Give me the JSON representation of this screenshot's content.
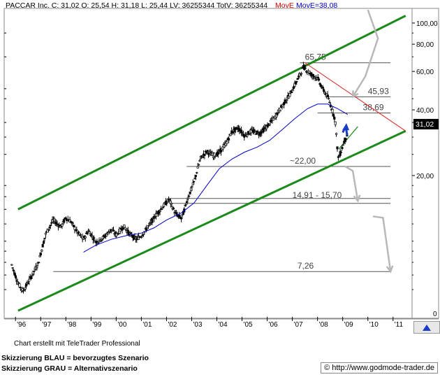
{
  "header": {
    "ticker_line": "PACCAR Inc. C: 31,02 O: 25,54 H: 31,18 L: 25,44 LV: 36255344 TotV: 36255344",
    "move_label": "MovE",
    "move_value": "MovE=38,08"
  },
  "footer": {
    "credit": "Chart erstellt mit TeleTrader Professional",
    "legend_blue": "Skizzierung BLAU = bevorzugtes Szenario",
    "legend_grey": "Skizzierung GRAU = Alternativszenario",
    "url": "© http://www.godmode-trader.de"
  },
  "chart_data": {
    "type": "candlestick",
    "y_scale": "log",
    "ylim": [
      4.5,
      115
    ],
    "x_tick_labels": [
      "'96",
      "'97",
      "'98",
      "'99",
      "'00",
      "'01",
      "'02",
      "'03",
      "'04",
      "'05",
      "'06",
      "'07",
      "'08",
      "'09",
      "'10",
      "'11"
    ],
    "y_tick_labels": [
      "100,00",
      "80,00",
      "60,00",
      "40,00",
      "20,00",
      "0"
    ],
    "y_tick_values": [
      100,
      80,
      60,
      40,
      20
    ],
    "last_price": "31,02",
    "indicators": {
      "moving_average": {
        "label": "MovE",
        "value": 38.08,
        "color": "#0000cc"
      }
    },
    "levels": [
      {
        "label": "65,75",
        "value": 65.75
      },
      {
        "label": "45,93",
        "value": 45.93
      },
      {
        "label": "38,69",
        "value": 38.69
      },
      {
        "label": "~22,00",
        "value": 22.0
      },
      {
        "label": "14,91 - 15,70",
        "value": 15.3
      },
      {
        "label": "7,26",
        "value": 7.26
      }
    ],
    "trend_channel": {
      "lower": [
        [
          1996.1,
          4.8
        ],
        [
          2011.5,
          32.0
        ]
      ],
      "upper": [
        [
          1996.1,
          14.0
        ],
        [
          2011.5,
          108.0
        ]
      ],
      "color": "#1a8a1a"
    },
    "resistance_line": {
      "points": [
        [
          2007.5,
          65.75
        ],
        [
          2011.5,
          32.0
        ]
      ],
      "color": "#dd2222"
    },
    "price_series": [
      [
        1995.85,
        7.8
      ],
      [
        1996.1,
        6.4
      ],
      [
        1996.3,
        5.9
      ],
      [
        1996.6,
        6.8
      ],
      [
        1996.9,
        7.9
      ],
      [
        1997.2,
        10.8
      ],
      [
        1997.5,
        12.5
      ],
      [
        1997.8,
        11.6
      ],
      [
        1998.0,
        12.8
      ],
      [
        1998.2,
        12.3
      ],
      [
        1998.45,
        11.0
      ],
      [
        1998.7,
        10.2
      ],
      [
        1998.9,
        11.2
      ],
      [
        1999.2,
        9.9
      ],
      [
        1999.5,
        10.4
      ],
      [
        1999.8,
        11.3
      ],
      [
        2000.0,
        10.7
      ],
      [
        2000.3,
        11.7
      ],
      [
        2000.5,
        10.9
      ],
      [
        2000.8,
        10.2
      ],
      [
        2001.0,
        10.6
      ],
      [
        2001.3,
        11.8
      ],
      [
        2001.6,
        13.3
      ],
      [
        2001.9,
        14.6
      ],
      [
        2002.1,
        15.6
      ],
      [
        2002.35,
        13.4
      ],
      [
        2002.6,
        12.7
      ],
      [
        2002.85,
        15.8
      ],
      [
        2003.1,
        18.8
      ],
      [
        2003.35,
        24.0
      ],
      [
        2003.6,
        25.8
      ],
      [
        2003.85,
        24.7
      ],
      [
        2004.05,
        25.2
      ],
      [
        2004.35,
        27.8
      ],
      [
        2004.6,
        31.8
      ],
      [
        2004.85,
        33.0
      ],
      [
        2005.1,
        30.5
      ],
      [
        2005.4,
        32.0
      ],
      [
        2005.7,
        31.2
      ],
      [
        2006.0,
        33.6
      ],
      [
        2006.3,
        37.0
      ],
      [
        2006.6,
        41.8
      ],
      [
        2006.9,
        47.0
      ],
      [
        2007.2,
        55.0
      ],
      [
        2007.45,
        63.0
      ],
      [
        2007.75,
        58.0
      ],
      [
        2008.0,
        56.0
      ],
      [
        2008.2,
        50.0
      ],
      [
        2008.4,
        46.0
      ],
      [
        2008.55,
        41.0
      ],
      [
        2008.7,
        36.0
      ],
      [
        2008.82,
        24.0
      ],
      [
        2008.92,
        25.5
      ],
      [
        2009.05,
        28.5
      ],
      [
        2009.2,
        31.02
      ]
    ],
    "ma_series": [
      [
        1998.7,
        8.9
      ],
      [
        1999.2,
        9.6
      ],
      [
        1999.8,
        10.2
      ],
      [
        2000.4,
        10.6
      ],
      [
        2001.0,
        10.9
      ],
      [
        2001.5,
        11.5
      ],
      [
        2002.0,
        12.5
      ],
      [
        2002.6,
        13.5
      ],
      [
        2003.1,
        15.0
      ],
      [
        2003.6,
        18.0
      ],
      [
        2004.1,
        21.5
      ],
      [
        2004.6,
        23.8
      ],
      [
        2005.1,
        25.6
      ],
      [
        2005.6,
        27.0
      ],
      [
        2006.1,
        29.0
      ],
      [
        2006.6,
        32.5
      ],
      [
        2007.1,
        36.5
      ],
      [
        2007.6,
        40.5
      ],
      [
        2008.0,
        42.5
      ],
      [
        2008.4,
        42.5
      ],
      [
        2008.8,
        40.5
      ],
      [
        2009.2,
        38.08
      ]
    ],
    "scenario_blue": [
      [
        2009.0,
        31.5
      ],
      [
        2009.12,
        33.5
      ],
      [
        2009.18,
        30.5
      ]
    ],
    "scenario_grey": [
      [
        [
          2010.0,
          115.0
        ],
        [
          2010.4,
          85.0
        ],
        [
          2009.9,
          57.0
        ],
        [
          2009.4,
          45.93
        ]
      ],
      [
        [
          2009.1,
          22.0
        ],
        [
          2009.4,
          21.0
        ],
        [
          2009.6,
          15.3
        ]
      ],
      [
        [
          2010.2,
          13.0
        ],
        [
          2010.6,
          12.8
        ],
        [
          2010.9,
          7.26
        ]
      ]
    ]
  }
}
